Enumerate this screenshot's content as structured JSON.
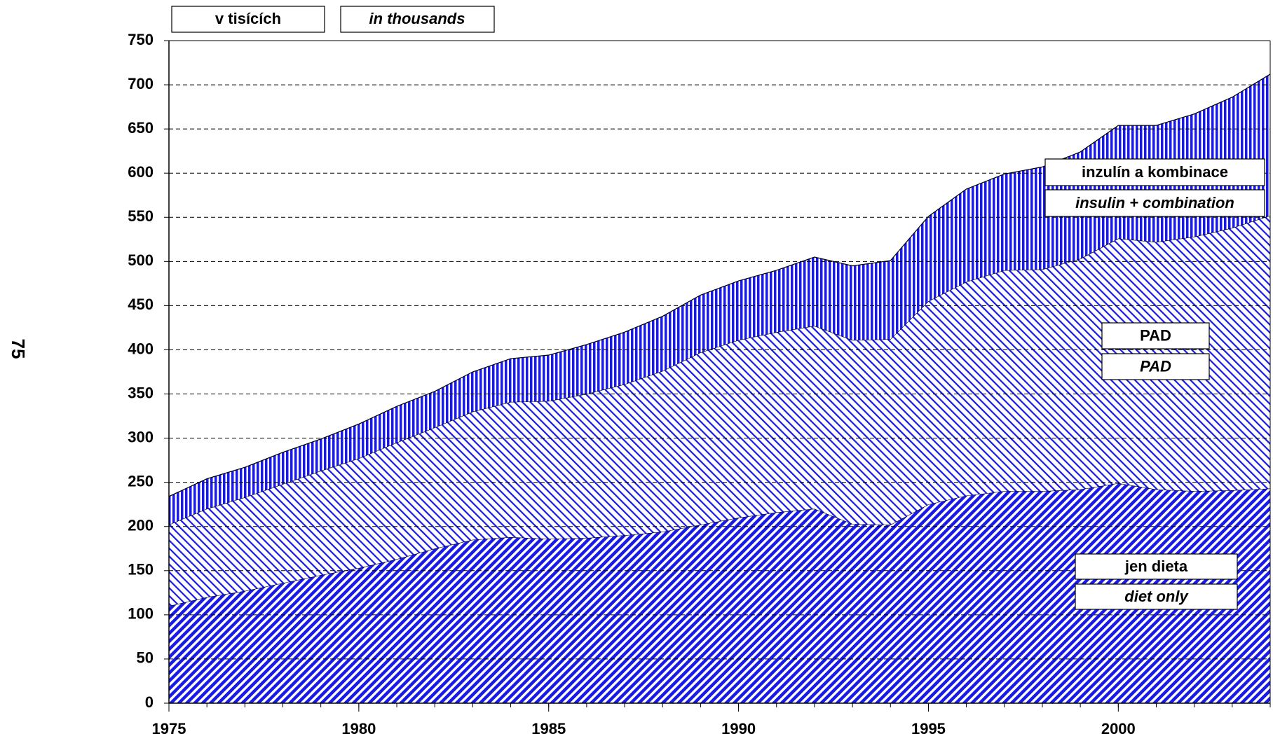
{
  "chart_data": {
    "type": "stacked_area",
    "page_number": "75",
    "unit_label": "v tisících",
    "unit_label_en": "in thousands",
    "x": [
      1975,
      1976,
      1977,
      1978,
      1979,
      1980,
      1981,
      1982,
      1983,
      1984,
      1985,
      1986,
      1987,
      1988,
      1989,
      1990,
      1991,
      1992,
      1993,
      1994,
      1995,
      1996,
      1997,
      1998,
      1999,
      2000,
      2001,
      2002,
      2003,
      2004
    ],
    "xlim": [
      1975,
      2004
    ],
    "xticks": [
      1975,
      1980,
      1985,
      1990,
      1995,
      2000
    ],
    "ylim": [
      0,
      750
    ],
    "yticks": [
      0,
      50,
      100,
      150,
      200,
      250,
      300,
      350,
      400,
      450,
      500,
      550,
      600,
      650,
      700,
      750
    ],
    "grid": true,
    "series": [
      {
        "name": "jen dieta",
        "name_en": "diet only",
        "color": "#1a1ae6",
        "pattern": "diagonal-up",
        "values": [
          110,
          120,
          127,
          136,
          145,
          153,
          163,
          175,
          185,
          188,
          186,
          187,
          190,
          194,
          202,
          210,
          216,
          220,
          203,
          202,
          225,
          235,
          240,
          240,
          242,
          249,
          242,
          240,
          241,
          243
        ]
      },
      {
        "name": "PAD",
        "name_en": "PAD",
        "color": "#1a1ae6",
        "pattern": "diagonal-down",
        "values": [
          92,
          100,
          106,
          112,
          118,
          124,
          132,
          137,
          145,
          153,
          156,
          163,
          171,
          182,
          195,
          201,
          204,
          207,
          208,
          210,
          230,
          242,
          250,
          251,
          261,
          277,
          280,
          288,
          297,
          309
        ]
      },
      {
        "name": "inzulín a kombinace",
        "name_en": "insulin + combination",
        "color": "#1a1ae6",
        "pattern": "vertical",
        "values": [
          32,
          34,
          34,
          36,
          36,
          39,
          41,
          41,
          45,
          49,
          52,
          56,
          59,
          62,
          65,
          67,
          70,
          78,
          84,
          89,
          96,
          105,
          109,
          116,
          121,
          128,
          132,
          139,
          148,
          160
        ]
      }
    ]
  }
}
